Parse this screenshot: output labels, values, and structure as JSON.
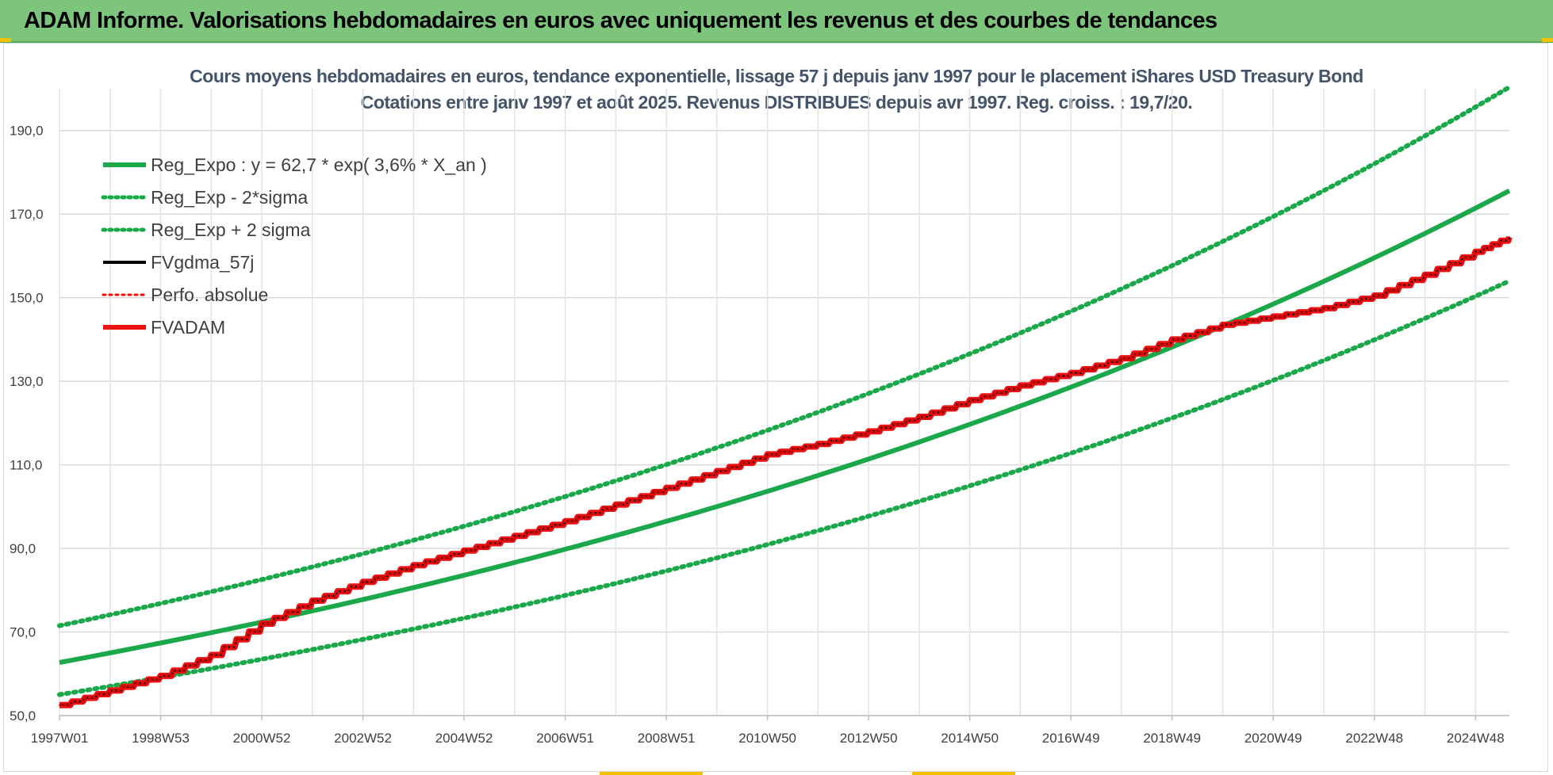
{
  "header": {
    "title": "ADAM Informe. Valorisations hebdomadaires en euros avec uniquement les revenus et des courbes de tendances"
  },
  "chart_data": {
    "type": "line",
    "title": "Cours moyens hebdomadaires en euros, tendance exponentielle, lissage 57 j depuis janv 1997 pour le placement iShares USD Treasury Bond",
    "subtitle": "Cotations entre janv 1997 et août 2025.  Revenus DISTRIBUES depuis avr 1997. Reg. croiss. : 19,7/20.",
    "xlabel": "",
    "ylabel": "",
    "x_tick_labels": [
      "1997W01",
      "1998W53",
      "2000W52",
      "2002W52",
      "2004W52",
      "2006W51",
      "2008W51",
      "2010W50",
      "2012W50",
      "2014W50",
      "2016W49",
      "2018W49",
      "2020W49",
      "2022W48",
      "2024W48"
    ],
    "x_tick_years": [
      1997.0,
      1999.0,
      2001.0,
      2003.0,
      2005.0,
      2007.0,
      2009.0,
      2011.0,
      2013.0,
      2015.0,
      2017.0,
      2019.0,
      2021.0,
      2023.0,
      2025.0
    ],
    "xlim": [
      1997.0,
      2025.67
    ],
    "y_tick_labels": [
      "50,0",
      "70,0",
      "90,0",
      "110,0",
      "130,0",
      "150,0",
      "170,0",
      "190,0"
    ],
    "ylim": [
      50,
      200
    ],
    "grid": true,
    "legend_position": "top-left",
    "series": [
      {
        "name": "Reg_Expo : y = 62,7 * exp( 3,6% *  X_an )",
        "style": "solid-thick",
        "color": "#1aa84a",
        "x": [
          1997,
          1999,
          2001,
          2003,
          2005,
          2007,
          2009,
          2011,
          2013,
          2015,
          2017,
          2019,
          2021,
          2023,
          2025.67
        ],
        "y": [
          62.7,
          67.4,
          72.4,
          77.8,
          83.6,
          89.8,
          96.5,
          103.7,
          111.4,
          119.7,
          128.7,
          138.3,
          148.6,
          159.6,
          175.6
        ]
      },
      {
        "name": "Reg_Exp - 2*sigma",
        "style": "dotted",
        "color": "#1aa84a",
        "x": [
          1997,
          1999,
          2001,
          2003,
          2005,
          2007,
          2009,
          2011,
          2013,
          2015,
          2017,
          2019,
          2021,
          2023,
          2025.67
        ],
        "y": [
          55.0,
          59.0,
          63.4,
          68.2,
          73.3,
          78.7,
          84.6,
          90.9,
          97.7,
          105.0,
          112.8,
          121.2,
          130.3,
          140.0,
          154.0
        ]
      },
      {
        "name": "Reg_Exp + 2 sigma",
        "style": "dotted",
        "color": "#1aa84a",
        "x": [
          1997,
          1999,
          2001,
          2003,
          2005,
          2007,
          2009,
          2011,
          2013,
          2015,
          2017,
          2019,
          2021,
          2023,
          2025.67
        ],
        "y": [
          71.5,
          76.8,
          82.6,
          88.7,
          95.3,
          102.4,
          110.1,
          118.3,
          127.1,
          136.6,
          146.8,
          157.7,
          169.5,
          182.1,
          200.4
        ]
      },
      {
        "name": "FVgdma_57j",
        "style": "solid",
        "color": "#000000",
        "x": [
          1997.0,
          1998.0,
          1999.0,
          2000.0,
          2001.0,
          2002.0,
          2003.0,
          2004.0,
          2005.0,
          2006.0,
          2007.0,
          2008.0,
          2009.0,
          2010.0,
          2011.0,
          2012.0,
          2013.0,
          2014.0,
          2015.0,
          2016.0,
          2017.0,
          2018.0,
          2019.0,
          2020.0,
          2021.0,
          2022.0,
          2023.0,
          2024.0,
          2025.0,
          2025.67
        ],
        "y": [
          52.5,
          56.0,
          59.5,
          64.5,
          72.0,
          77.5,
          82.0,
          86.0,
          89.5,
          93.0,
          96.5,
          100.5,
          104.5,
          108.5,
          112.5,
          115.0,
          118.0,
          121.5,
          125.5,
          129.0,
          132.0,
          135.5,
          140.0,
          143.5,
          145.5,
          147.5,
          150.5,
          155.5,
          161.0,
          164.5
        ]
      },
      {
        "name": "Perfo. absolue",
        "style": "dotted",
        "color": "#ff0000",
        "x": [
          1997.0,
          1998.0,
          1999.0,
          2000.0,
          2001.0,
          2002.0,
          2003.0,
          2004.0,
          2005.0,
          2006.0,
          2007.0,
          2008.0,
          2009.0,
          2010.0,
          2011.0,
          2012.0,
          2013.0,
          2014.0,
          2015.0,
          2016.0,
          2017.0,
          2018.0,
          2019.0,
          2020.0,
          2021.0,
          2022.0,
          2023.0,
          2024.0,
          2025.0,
          2025.67
        ],
        "y": [
          52.5,
          56.0,
          59.5,
          64.5,
          72.0,
          77.5,
          82.0,
          86.0,
          89.5,
          93.0,
          96.5,
          100.5,
          104.5,
          108.5,
          112.5,
          115.0,
          118.0,
          121.5,
          125.5,
          129.0,
          132.0,
          135.5,
          140.0,
          143.5,
          145.5,
          147.5,
          150.5,
          155.5,
          161.0,
          164.5
        ]
      },
      {
        "name": "FVADAM",
        "style": "solid-thick",
        "color": "#ee1111",
        "x": [
          1997.0,
          1998.0,
          1999.0,
          2000.0,
          2001.0,
          2002.0,
          2003.0,
          2004.0,
          2005.0,
          2006.0,
          2007.0,
          2008.0,
          2009.0,
          2010.0,
          2011.0,
          2012.0,
          2013.0,
          2014.0,
          2015.0,
          2016.0,
          2017.0,
          2018.0,
          2019.0,
          2020.0,
          2021.0,
          2022.0,
          2023.0,
          2024.0,
          2025.0,
          2025.67
        ],
        "y": [
          52.5,
          56.0,
          59.5,
          64.5,
          72.0,
          77.5,
          82.0,
          86.0,
          89.5,
          93.0,
          96.5,
          100.5,
          104.5,
          108.5,
          112.5,
          115.0,
          118.0,
          121.5,
          125.5,
          129.0,
          132.0,
          135.5,
          140.0,
          143.5,
          145.5,
          147.5,
          150.5,
          155.5,
          161.0,
          164.5
        ]
      }
    ]
  }
}
